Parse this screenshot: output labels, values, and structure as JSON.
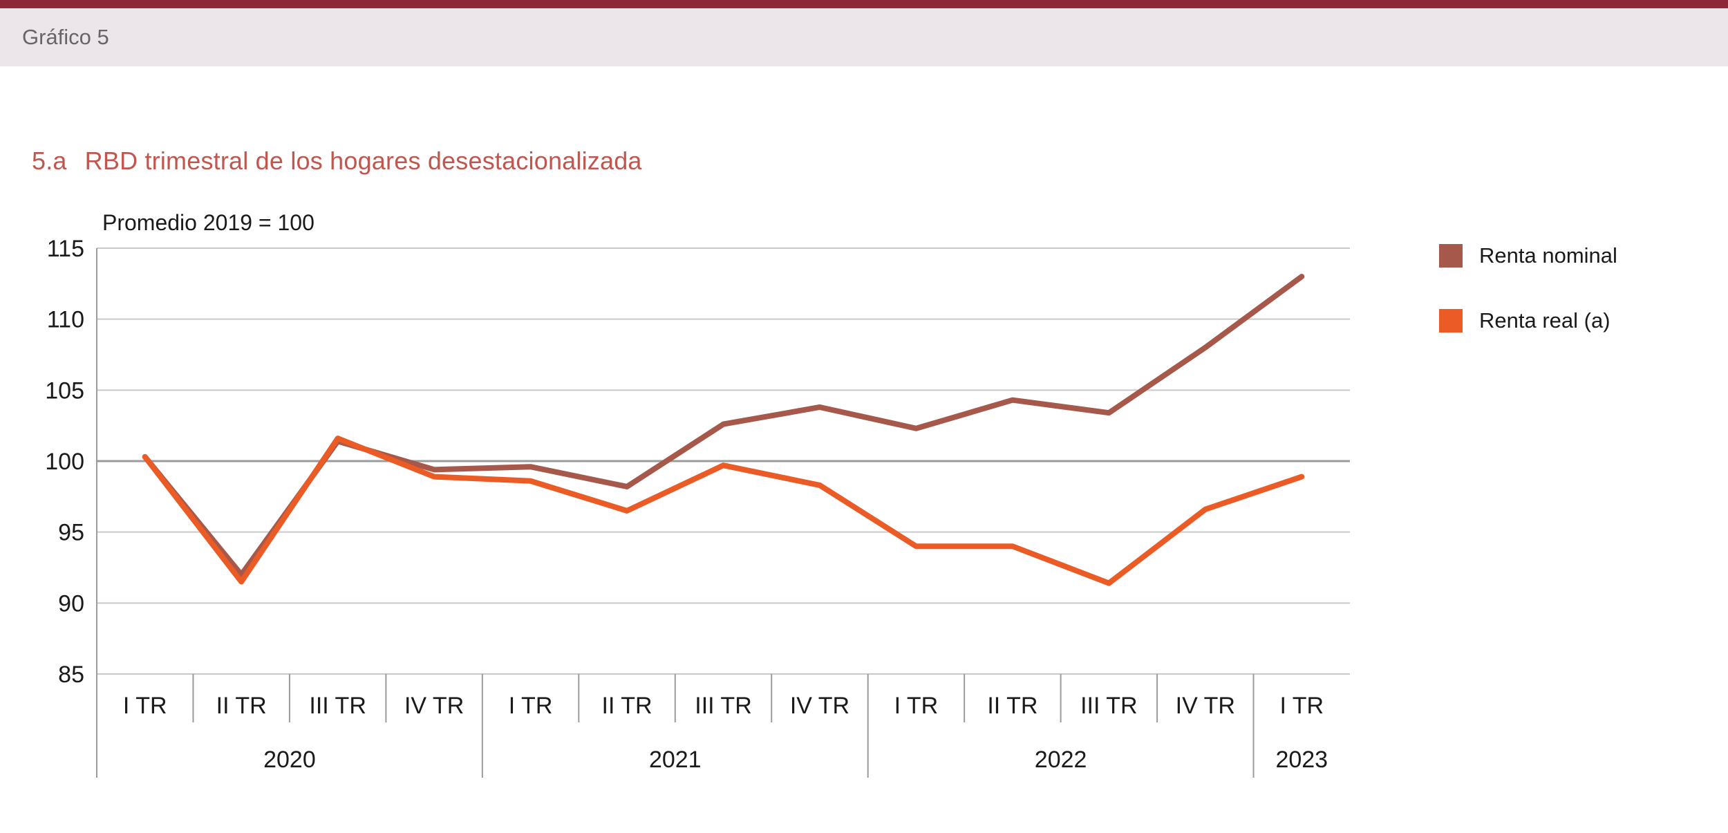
{
  "header": {
    "figure_label": "Gráfico 5"
  },
  "panel": {
    "number": "5.a",
    "title": "RBD trimestral de los hogares desestacionalizada"
  },
  "chart_data": {
    "type": "line",
    "title": "RBD trimestral de los hogares desestacionalizada",
    "subtitle": "Promedio 2019 = 100",
    "categories": [
      "I TR",
      "II TR",
      "III TR",
      "IV TR",
      "I TR",
      "II TR",
      "III TR",
      "IV TR",
      "I TR",
      "II TR",
      "III TR",
      "IV TR",
      "I TR"
    ],
    "year_groups": [
      {
        "label": "2020",
        "span": 4
      },
      {
        "label": "2021",
        "span": 4
      },
      {
        "label": "2022",
        "span": 4
      },
      {
        "label": "2023",
        "span": 1
      }
    ],
    "series": [
      {
        "name": "Renta nominal",
        "color": "#a6594a",
        "values": [
          100.3,
          92.0,
          101.4,
          99.4,
          99.6,
          98.2,
          102.6,
          103.8,
          102.3,
          104.3,
          103.4,
          108.0,
          113.0
        ]
      },
      {
        "name": "Renta real (a)",
        "color": "#eb5b25",
        "values": [
          100.3,
          91.5,
          101.6,
          98.9,
          98.6,
          96.5,
          99.7,
          98.3,
          94.0,
          94.0,
          91.4,
          96.6,
          98.9
        ]
      }
    ],
    "ylim": [
      85,
      115
    ],
    "y_ticks": [
      85,
      90,
      95,
      100,
      105,
      110,
      115
    ],
    "grid": "horizontal",
    "reference_line": 100,
    "legend_position": "right"
  },
  "colors": {
    "top_rule": "#8e2639",
    "band_bg": "#ece5ea",
    "band_text": "#666666",
    "title": "#c0574f",
    "grid": "#c9c9c9",
    "grid_ref": "#9b9b9b",
    "axis_text": "#1a1a1a"
  }
}
